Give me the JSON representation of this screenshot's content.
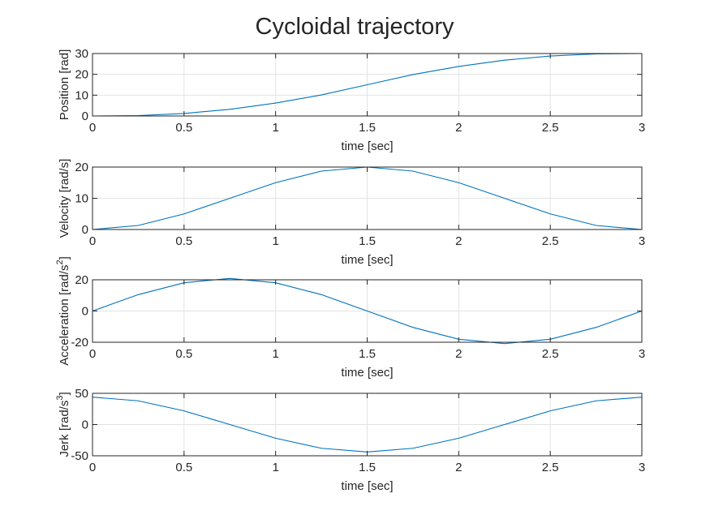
{
  "figure": {
    "title": "Cycloidal trajectory"
  },
  "chart_data": [
    {
      "type": "line",
      "xlabel": "time [sec]",
      "ylabel": "Position [rad]",
      "xlim": [
        0,
        3
      ],
      "ylim": [
        0,
        30
      ],
      "xticks": [
        "0",
        "0.5",
        "1",
        "1.5",
        "2",
        "2.5",
        "3"
      ],
      "yticks": [
        "0",
        "10",
        "20",
        "30"
      ],
      "ytick_values": [
        0,
        10,
        20,
        30
      ],
      "grid": true,
      "line_color": "#0072BD",
      "series": [
        {
          "x": [
            0,
            0.25,
            0.5,
            0.75,
            1,
            1.25,
            1.5,
            1.75,
            2,
            2.25,
            2.5,
            2.75,
            3
          ],
          "y": [
            0.0,
            0.2,
            1.2,
            3.2,
            6.2,
            10.1,
            15.0,
            19.9,
            23.8,
            26.8,
            28.8,
            29.8,
            30.0
          ]
        }
      ]
    },
    {
      "type": "line",
      "xlabel": "time [sec]",
      "ylabel": "Velocity [rad/s]",
      "xlim": [
        0,
        3
      ],
      "ylim": [
        0,
        20
      ],
      "xticks": [
        "0",
        "0.5",
        "1",
        "1.5",
        "2",
        "2.5",
        "3"
      ],
      "yticks": [
        "0",
        "10",
        "20"
      ],
      "ytick_values": [
        0,
        10,
        20
      ],
      "grid": true,
      "line_color": "#0072BD",
      "series": [
        {
          "x": [
            0,
            0.25,
            0.5,
            0.75,
            1,
            1.25,
            1.5,
            1.75,
            2,
            2.25,
            2.5,
            2.75,
            3
          ],
          "y": [
            0.0,
            1.3,
            5.0,
            10.0,
            15.0,
            18.7,
            20.0,
            18.7,
            15.0,
            10.0,
            5.0,
            1.3,
            0.0
          ]
        }
      ]
    },
    {
      "type": "line",
      "xlabel": "time [sec]",
      "ylabel": "Acceleration [rad/s",
      "ylabel_sup": "2",
      "ylabel_end": "]",
      "xlim": [
        0,
        3
      ],
      "ylim": [
        -20,
        20
      ],
      "xticks": [
        "0",
        "0.5",
        "1",
        "1.5",
        "2",
        "2.5",
        "3"
      ],
      "yticks": [
        "-20",
        "0",
        "20"
      ],
      "ytick_values": [
        -20,
        0,
        20
      ],
      "grid": true,
      "line_color": "#0072BD",
      "series": [
        {
          "x": [
            0,
            0.25,
            0.5,
            0.75,
            1,
            1.25,
            1.5,
            1.75,
            2,
            2.25,
            2.5,
            2.75,
            3
          ],
          "y": [
            0.0,
            10.5,
            18.1,
            20.9,
            18.1,
            10.5,
            0.0,
            -10.5,
            -18.1,
            -20.9,
            -18.1,
            -10.5,
            0.0
          ]
        }
      ]
    },
    {
      "type": "line",
      "xlabel": "time [sec]",
      "ylabel": "Jerk [rad/s",
      "ylabel_sup": "3",
      "ylabel_end": "]",
      "xlim": [
        0,
        3
      ],
      "ylim": [
        -50,
        50
      ],
      "xticks": [
        "0",
        "0.5",
        "1",
        "1.5",
        "2",
        "2.5",
        "3"
      ],
      "yticks": [
        "-50",
        "0",
        "50"
      ],
      "ytick_values": [
        -50,
        0,
        50
      ],
      "grid": true,
      "line_color": "#0072BD",
      "series": [
        {
          "x": [
            0,
            0.25,
            0.5,
            0.75,
            1,
            1.25,
            1.5,
            1.75,
            2,
            2.25,
            2.5,
            2.75,
            3
          ],
          "y": [
            43.9,
            38.0,
            21.9,
            0.0,
            -21.9,
            -38.0,
            -43.9,
            -38.0,
            -21.9,
            0.0,
            21.9,
            38.0,
            43.9
          ]
        }
      ]
    }
  ]
}
